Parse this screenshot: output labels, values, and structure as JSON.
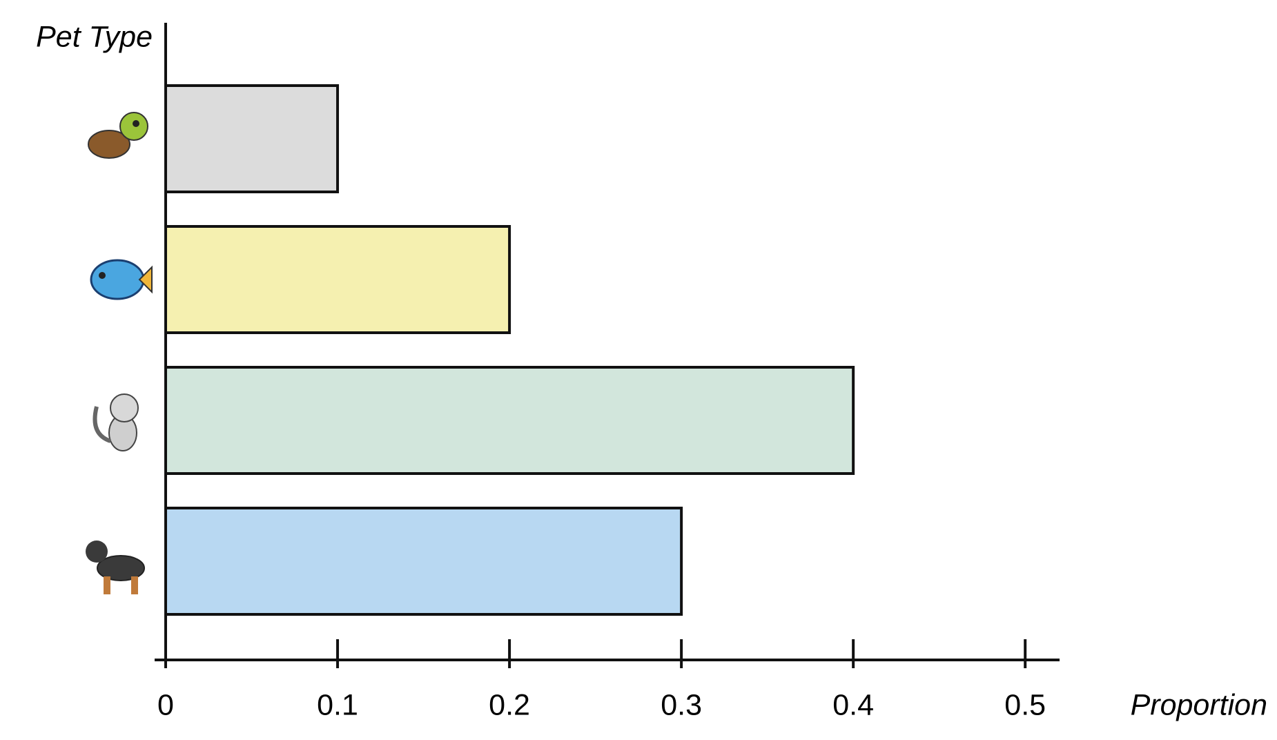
{
  "chart_data": {
    "type": "bar",
    "orientation": "horizontal",
    "y_label": "Pet Type",
    "x_label": "Proportion",
    "categories": [
      null,
      null,
      null,
      null
    ],
    "values": [
      0.1,
      0.2,
      0.4,
      0.3
    ],
    "colors": [
      "#dcdcdc",
      "#f5f0b0",
      "#d2e6dc",
      "#b8d8f2"
    ],
    "xlim": [
      0,
      0.52
    ],
    "xticks": [
      0,
      0.1,
      0.2,
      0.3,
      0.4,
      0.5
    ],
    "grid": false
  }
}
